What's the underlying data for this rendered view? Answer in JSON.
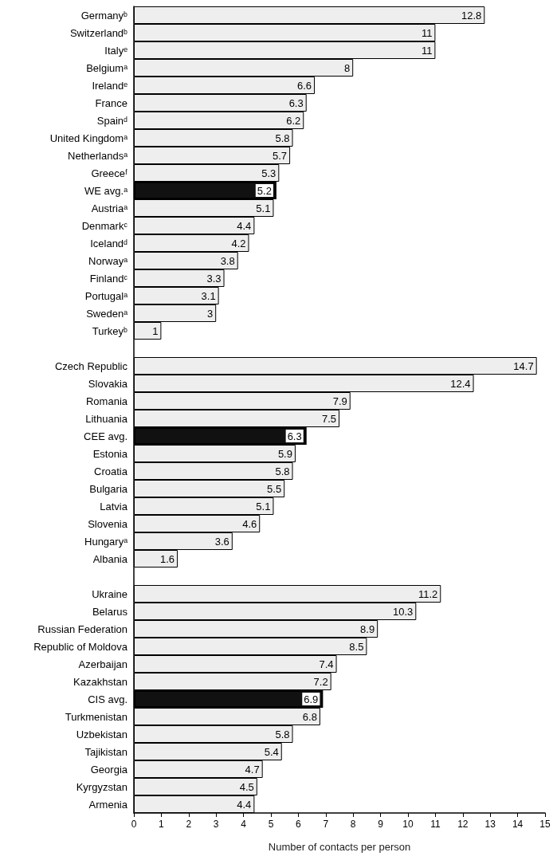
{
  "chart_data": {
    "type": "bar",
    "orientation": "horizontal",
    "xlabel": "Number of contacts per person",
    "xlim": [
      0,
      15
    ],
    "xticks": [
      0,
      1,
      2,
      3,
      4,
      5,
      6,
      7,
      8,
      9,
      10,
      11,
      12,
      13,
      14,
      15
    ],
    "grid": false,
    "data_labels": true,
    "categories": [
      "Germanyᵇ",
      "Switzerlandᵇ",
      "Italyᵉ",
      "Belgiumᵃ",
      "Irelandᵉ",
      "France",
      "Spainᵈ",
      "United Kingdomᵃ",
      "Netherlandsᵃ",
      "Greeceᶠ",
      "WE avg.ᵃ",
      "Austriaᵃ",
      "Denmarkᶜ",
      "Icelandᵈ",
      "Norwayᵃ",
      "Finlandᶜ",
      "Portugalᵃ",
      "Swedenᵃ",
      "Turkeyᵇ",
      null,
      "Czech Republic",
      "Slovakia",
      "Romania",
      "Lithuania",
      "CEE avg.",
      "Estonia",
      "Croatia",
      "Bulgaria",
      "Latvia",
      "Slovenia",
      "Hungaryᵃ",
      "Albania",
      null,
      "Ukraine",
      "Belarus",
      "Russian Federation",
      "Republic of Moldova",
      "Azerbaijan",
      "Kazakhstan",
      "CIS avg.",
      "Turkmenistan",
      "Uzbekistan",
      "Tajikistan",
      "Georgia",
      "Kyrgyzstan",
      "Armenia"
    ],
    "values": [
      12.8,
      11,
      11,
      8,
      6.6,
      6.3,
      6.2,
      5.8,
      5.7,
      5.3,
      5.2,
      5.1,
      4.4,
      4.2,
      3.8,
      3.3,
      3.1,
      3,
      1,
      null,
      14.7,
      12.4,
      7.9,
      7.5,
      6.3,
      5.9,
      5.8,
      5.5,
      5.1,
      4.6,
      3.6,
      1.6,
      null,
      11.2,
      10.3,
      8.9,
      8.5,
      7.4,
      7.2,
      6.9,
      6.8,
      5.8,
      5.4,
      4.7,
      4.5,
      4.4
    ],
    "colors": [
      "#eeeeee",
      "#eeeeee",
      "#eeeeee",
      "#eeeeee",
      "#eeeeee",
      "#eeeeee",
      "#eeeeee",
      "#eeeeee",
      "#eeeeee",
      "#eeeeee",
      "#111111",
      "#eeeeee",
      "#eeeeee",
      "#eeeeee",
      "#eeeeee",
      "#eeeeee",
      "#eeeeee",
      "#eeeeee",
      "#eeeeee",
      null,
      "#eeeeee",
      "#eeeeee",
      "#eeeeee",
      "#eeeeee",
      "#111111",
      "#eeeeee",
      "#eeeeee",
      "#eeeeee",
      "#eeeeee",
      "#eeeeee",
      "#eeeeee",
      "#eeeeee",
      null,
      "#eeeeee",
      "#eeeeee",
      "#eeeeee",
      "#eeeeee",
      "#eeeeee",
      "#eeeeee",
      "#111111",
      "#eeeeee",
      "#eeeeee",
      "#eeeeee",
      "#eeeeee",
      "#eeeeee",
      "#eeeeee"
    ]
  }
}
